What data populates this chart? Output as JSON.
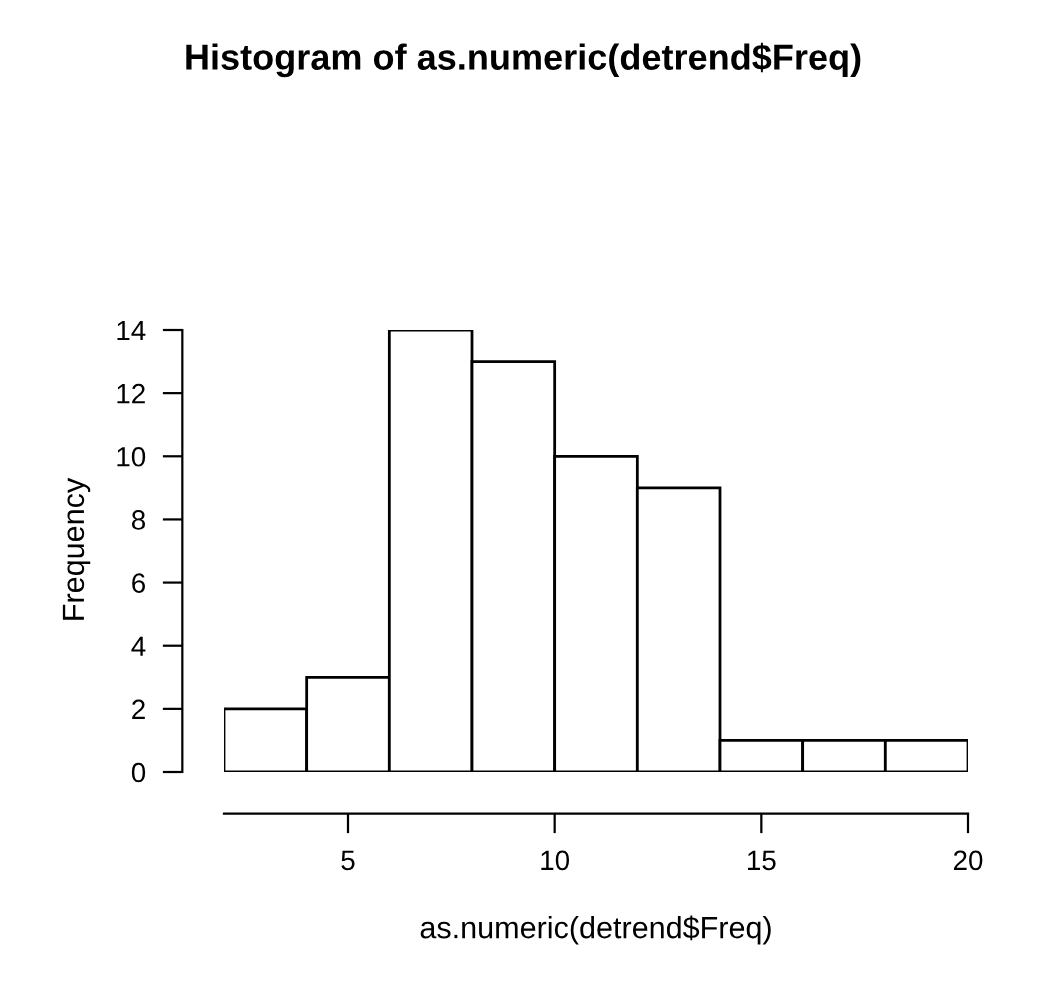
{
  "chart_data": {
    "type": "histogram",
    "title": "Histogram of as.numeric(detrend$Freq)",
    "xlabel": "as.numeric(detrend$Freq)",
    "ylabel": "Frequency",
    "bins": [
      2,
      4,
      6,
      8,
      10,
      12,
      14,
      16,
      18,
      20
    ],
    "values": [
      2,
      3,
      14,
      13,
      10,
      9,
      1,
      1,
      1
    ],
    "color": "#ffffff",
    "xlim": [
      2,
      20
    ],
    "xticks": [
      5,
      10,
      15,
      20
    ],
    "ylim": [
      0,
      14
    ],
    "yticks": [
      0,
      2,
      4,
      6,
      8,
      10,
      12,
      14
    ],
    "grid": false
  }
}
